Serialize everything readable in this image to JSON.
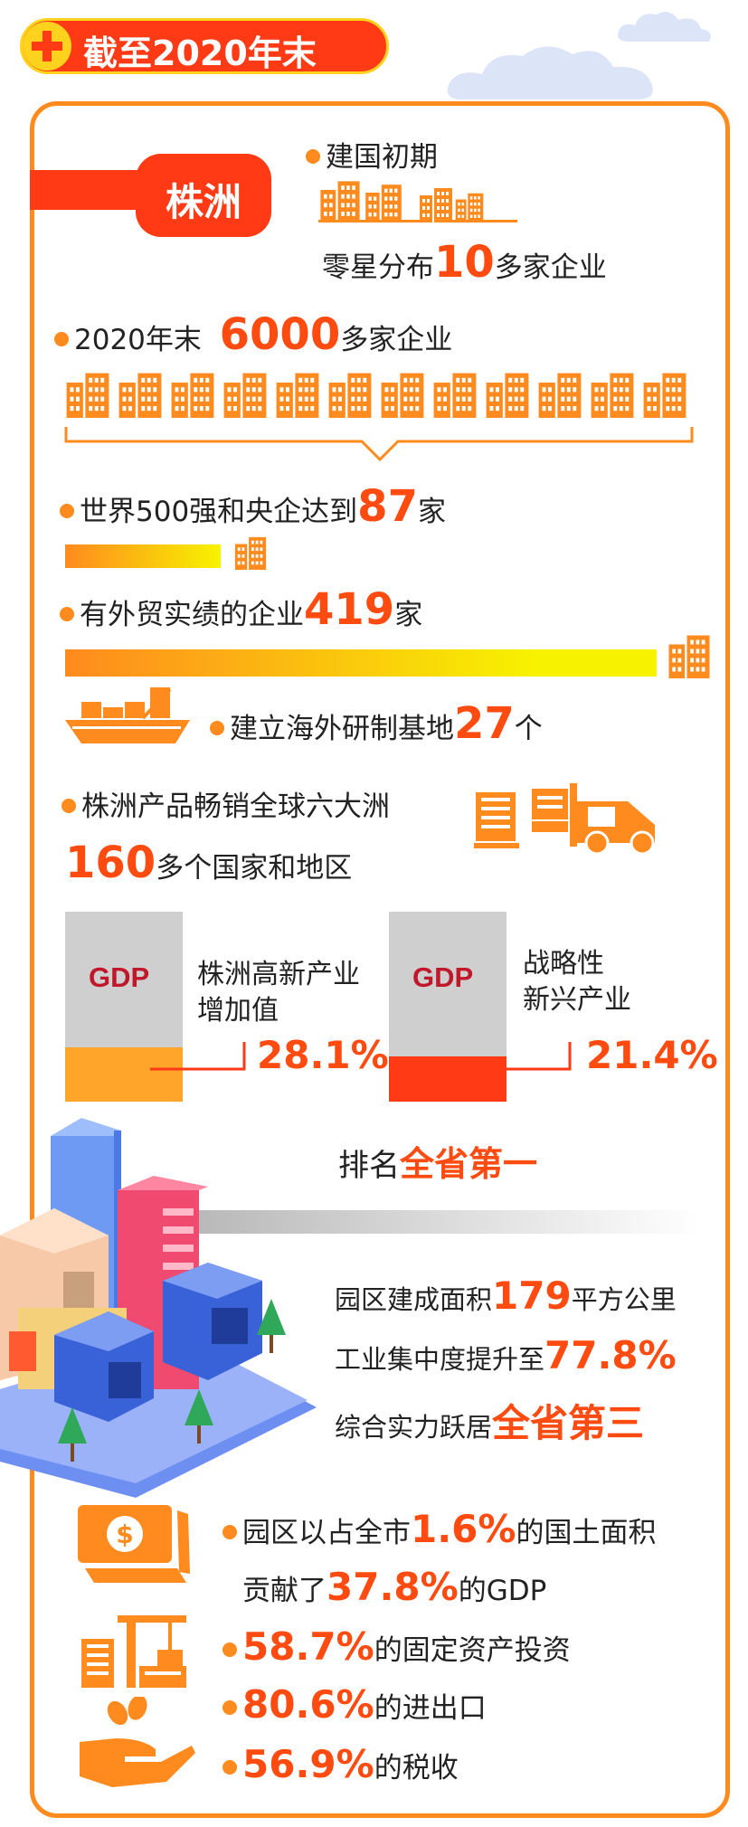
{
  "header": {
    "icon": "plus-icon",
    "title": "截至2020年末"
  },
  "city": {
    "label": "株洲"
  },
  "early": {
    "label": "建国初期",
    "text_pre": "零星分布",
    "value": "10",
    "text_post": "多家企业"
  },
  "y2020": {
    "label_pre": "2020年末",
    "value": "6000",
    "text_post": "多家企业"
  },
  "fortune": {
    "text_pre": "世界500强和央企达到",
    "value": "87",
    "text_post": "家"
  },
  "trade": {
    "text_pre": "有外贸实绩的企业",
    "value": "419",
    "text_post": "家"
  },
  "overseas": {
    "text_pre": "建立海外研制基地",
    "value": "27",
    "text_post": "个"
  },
  "global": {
    "line1": "株洲产品畅销全球六大洲",
    "value": "160",
    "line2_post": "多个国家和地区"
  },
  "gdp": {
    "hitech": {
      "badge": "GDP",
      "label_line1": "株洲高新产业",
      "label_line2": "增加值",
      "value": "28.1%",
      "share": 0.281
    },
    "strategic": {
      "badge": "GDP",
      "label_line1": "战略性",
      "label_line2": "新兴产业",
      "value": "21.4%",
      "share": 0.214
    }
  },
  "rank1": {
    "pre": "排名",
    "value": "全省第一"
  },
  "park": {
    "area_pre": "园区建成面积",
    "area_value": "179",
    "area_post": "平方公里",
    "conc_pre": "工业集中度提升至",
    "conc_value": "77.8%",
    "power_pre": "综合实力跃居",
    "power_value": "全省第三"
  },
  "contrib": {
    "line1_pre": "园区以占全市",
    "line1_value": "1.6%",
    "line1_post": "的国土面积",
    "line2_pre": "贡献了",
    "line2_value": "37.8%",
    "line2_post": "的GDP",
    "line3_value": "58.7%",
    "line3_post": "的固定资产投资",
    "line4_value": "80.6%",
    "line4_post": "的进出口",
    "line5_value": "56.9%",
    "line5_post": "的税收"
  },
  "colors": {
    "accent": "#ff4a10",
    "orange": "#ff8a1e",
    "red": "#ff3a14",
    "yellow": "#f7f300",
    "gdp_red": "#c0182a",
    "gray": "#cfcfcf"
  }
}
